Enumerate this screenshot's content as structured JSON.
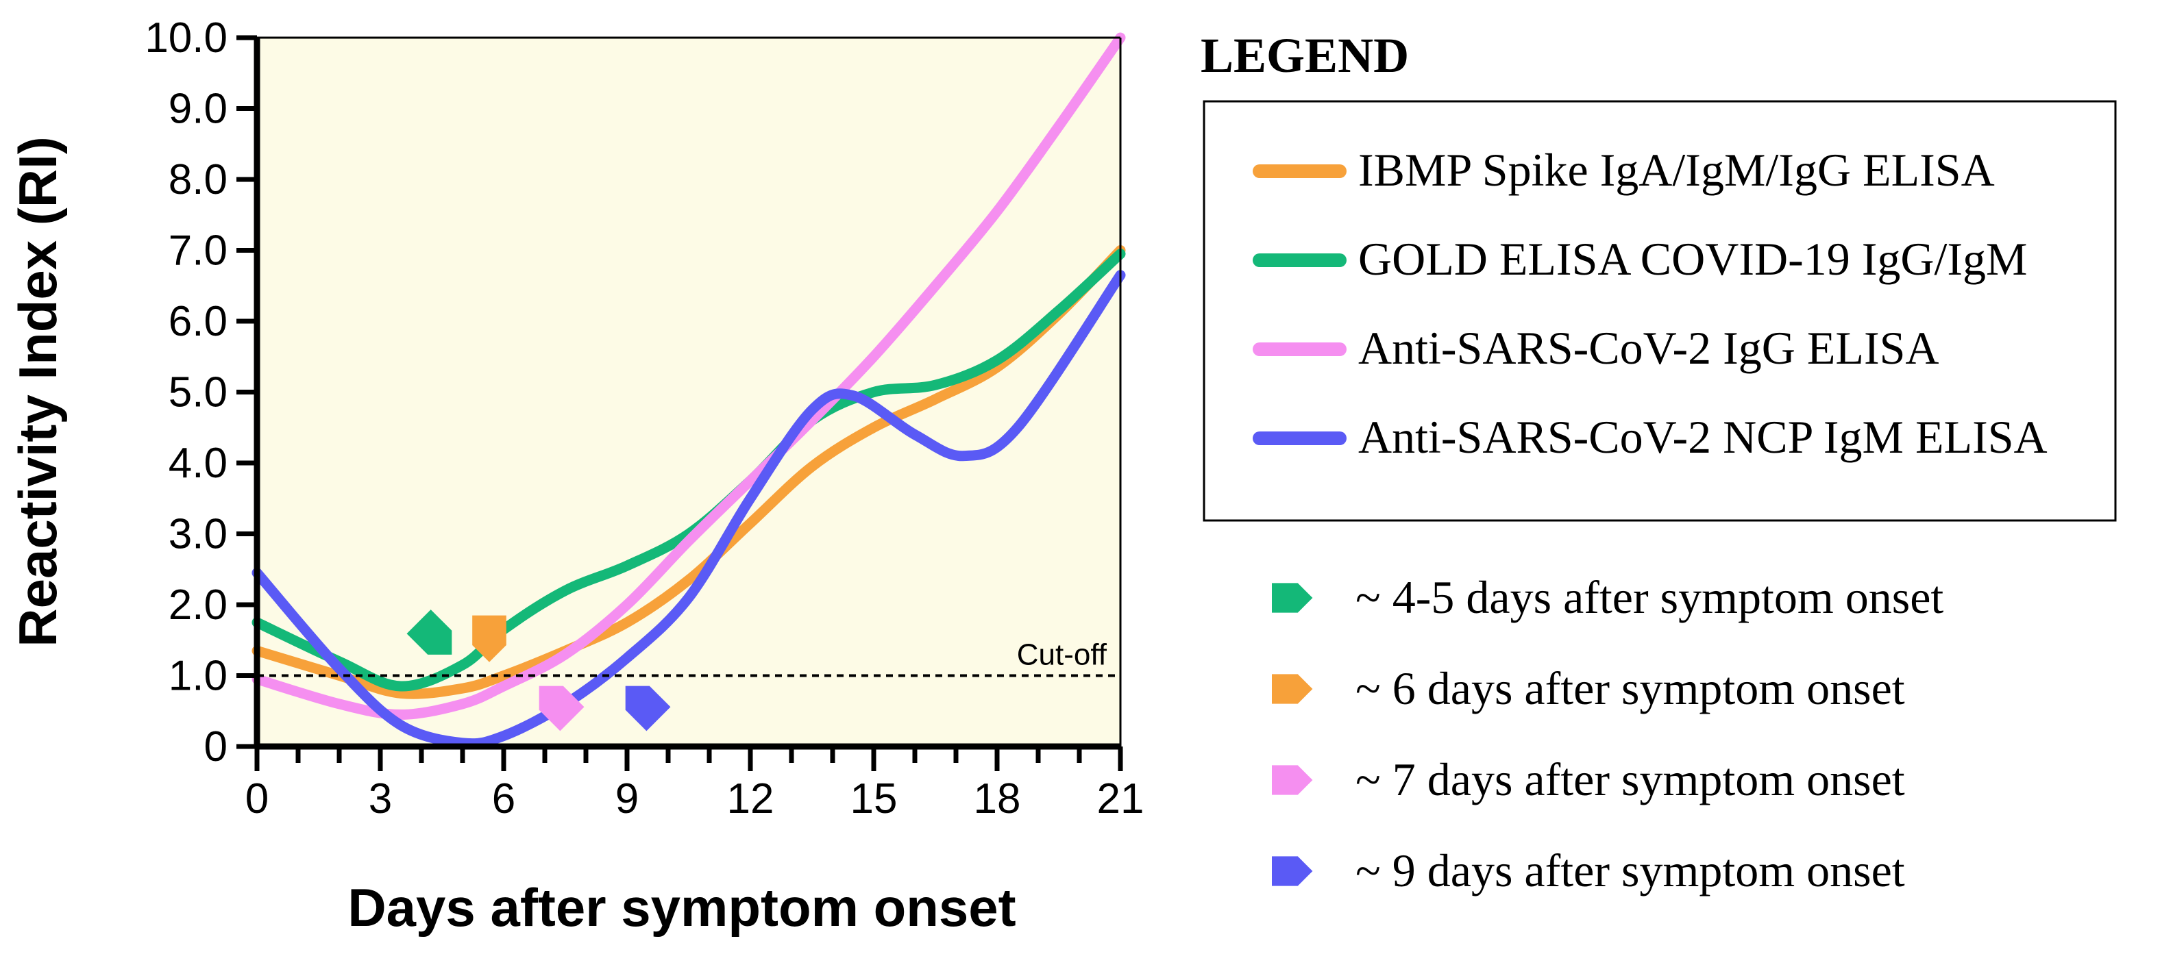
{
  "chart_data": {
    "type": "line",
    "xlabel": "Days after symptom onset",
    "ylabel": "Reactivity Index (RI)",
    "xlim": [
      0,
      21
    ],
    "ylim": [
      0,
      10
    ],
    "x_major_ticks": [
      "0",
      "3",
      "6",
      "9",
      "12",
      "15",
      "18",
      "21"
    ],
    "y_ticks": [
      "0",
      "1.0",
      "2.0",
      "3.0",
      "4.0",
      "5.0",
      "6.0",
      "7.0",
      "8.0",
      "9.0",
      "10.0"
    ],
    "grid": false,
    "background": "#fdfbe6",
    "cutoff": {
      "value": 1.0,
      "label": "Cut-off"
    },
    "legend_title": "LEGEND",
    "series": [
      {
        "name": "IBMP Spike IgA/IgM/IgG ELISA",
        "color": "#f7a13a",
        "x": [
          0,
          2,
          3.5,
          5,
          6,
          7.5,
          9,
          10.5,
          12,
          13.5,
          15,
          16.5,
          18,
          19.5,
          21
        ],
        "y": [
          1.35,
          1.0,
          0.75,
          0.82,
          1.0,
          1.35,
          1.75,
          2.35,
          3.15,
          3.95,
          4.5,
          4.9,
          5.35,
          6.1,
          7.0
        ]
      },
      {
        "name": "GOLD ELISA COVID-19 IgG/IgM",
        "color": "#14b878",
        "x": [
          0,
          2,
          3.5,
          5,
          6,
          7.5,
          9,
          10.5,
          12,
          13.5,
          15,
          16.5,
          18,
          19.5,
          21
        ],
        "y": [
          1.75,
          1.2,
          0.85,
          1.15,
          1.65,
          2.2,
          2.55,
          3.0,
          3.75,
          4.6,
          5.0,
          5.1,
          5.45,
          6.15,
          6.95
        ]
      },
      {
        "name": "Anti-SARS-CoV-2 IgG ELISA",
        "color": "#f58ff0",
        "x": [
          0,
          2,
          3.5,
          5,
          6,
          7.5,
          9,
          10.5,
          12,
          13.5,
          15,
          16.5,
          18,
          19.5,
          21
        ],
        "y": [
          0.95,
          0.6,
          0.45,
          0.6,
          0.85,
          1.3,
          2.0,
          2.9,
          3.75,
          4.6,
          5.5,
          6.5,
          7.55,
          8.75,
          10.0
        ]
      },
      {
        "name": "Anti-SARS-CoV-2 NCP IgM ELISA",
        "color": "#5a5af5",
        "x": [
          0,
          2,
          3.5,
          5,
          6,
          7.5,
          9,
          10.5,
          12,
          13.5,
          14.5,
          16,
          17.2,
          18.5,
          21
        ],
        "y": [
          2.45,
          1.1,
          0.3,
          0.05,
          0.15,
          0.6,
          1.25,
          2.1,
          3.5,
          4.75,
          4.95,
          4.4,
          4.1,
          4.5,
          6.65
        ]
      }
    ],
    "onset_markers": [
      {
        "label": "~ 4-5 days after symptom onset",
        "color": "#14b878",
        "x": 4.3,
        "y": 1.55,
        "direction": "down-right"
      },
      {
        "label": "~ 6 days after symptom onset",
        "color": "#f7a13a",
        "x": 5.65,
        "y": 1.55,
        "direction": "down"
      },
      {
        "label": "~ 7 days after symptom onset",
        "color": "#f58ff0",
        "x": 7.3,
        "y": 0.6,
        "direction": "up-left"
      },
      {
        "label": "~ 9 days after symptom onset",
        "color": "#5a5af5",
        "x": 9.4,
        "y": 0.6,
        "direction": "up-left"
      }
    ]
  }
}
